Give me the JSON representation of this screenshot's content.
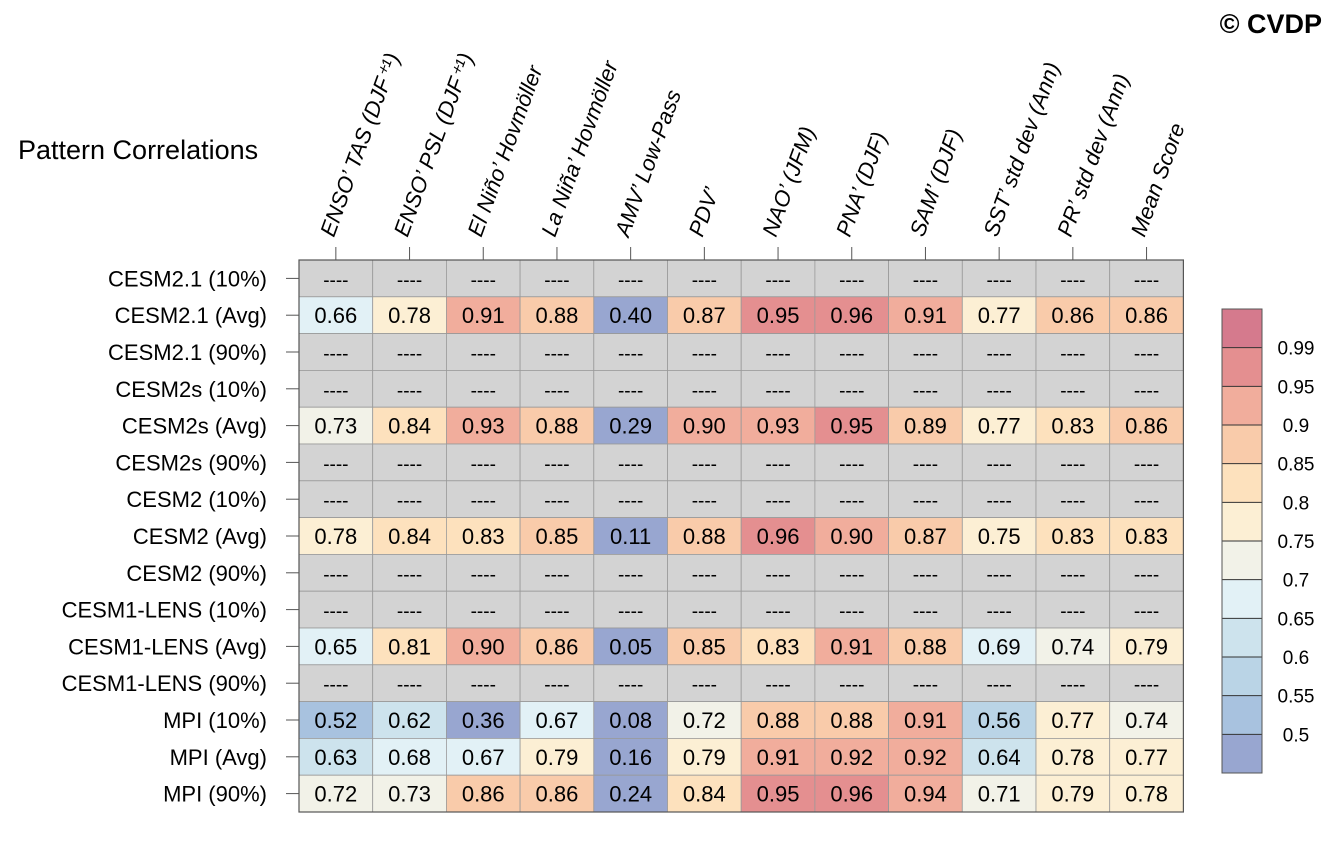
{
  "watermark": "© CVDP",
  "chart_data": {
    "type": "heatmap",
    "title": "Pattern Correlations",
    "columns": [
      "ENSO’ TAS (DJF⁺¹)",
      "ENSO’ PSL (DJF⁺¹)",
      "El Niño’ Hovmöller",
      "La Niña’ Hovmöller",
      "AMV’ Low-Pass",
      "PDV’",
      "NAO’ (JFM)",
      "PNA’ (DJF)",
      "SAM’ (DJF)",
      "SST’ std dev (Ann)",
      "PR’ std dev (Ann)",
      "Mean Score"
    ],
    "rows": [
      {
        "label": "CESM2.1 (10%)",
        "values": [
          null,
          null,
          null,
          null,
          null,
          null,
          null,
          null,
          null,
          null,
          null,
          null
        ]
      },
      {
        "label": "CESM2.1 (Avg)",
        "values": [
          0.66,
          0.78,
          0.91,
          0.88,
          0.4,
          0.87,
          0.95,
          0.96,
          0.91,
          0.77,
          0.86,
          0.86
        ]
      },
      {
        "label": "CESM2.1 (90%)",
        "values": [
          null,
          null,
          null,
          null,
          null,
          null,
          null,
          null,
          null,
          null,
          null,
          null
        ]
      },
      {
        "label": "CESM2s (10%)",
        "values": [
          null,
          null,
          null,
          null,
          null,
          null,
          null,
          null,
          null,
          null,
          null,
          null
        ]
      },
      {
        "label": "CESM2s (Avg)",
        "values": [
          0.73,
          0.84,
          0.93,
          0.88,
          0.29,
          0.9,
          0.93,
          0.95,
          0.89,
          0.77,
          0.83,
          0.86
        ]
      },
      {
        "label": "CESM2s (90%)",
        "values": [
          null,
          null,
          null,
          null,
          null,
          null,
          null,
          null,
          null,
          null,
          null,
          null
        ]
      },
      {
        "label": "CESM2 (10%)",
        "values": [
          null,
          null,
          null,
          null,
          null,
          null,
          null,
          null,
          null,
          null,
          null,
          null
        ]
      },
      {
        "label": "CESM2 (Avg)",
        "values": [
          0.78,
          0.84,
          0.83,
          0.85,
          0.11,
          0.88,
          0.96,
          0.9,
          0.87,
          0.75,
          0.83,
          0.83
        ]
      },
      {
        "label": "CESM2 (90%)",
        "values": [
          null,
          null,
          null,
          null,
          null,
          null,
          null,
          null,
          null,
          null,
          null,
          null
        ]
      },
      {
        "label": "CESM1-LENS (10%)",
        "values": [
          null,
          null,
          null,
          null,
          null,
          null,
          null,
          null,
          null,
          null,
          null,
          null
        ]
      },
      {
        "label": "CESM1-LENS (Avg)",
        "values": [
          0.65,
          0.81,
          0.9,
          0.86,
          0.05,
          0.85,
          0.83,
          0.91,
          0.88,
          0.69,
          0.74,
          0.79
        ]
      },
      {
        "label": "CESM1-LENS (90%)",
        "values": [
          null,
          null,
          null,
          null,
          null,
          null,
          null,
          null,
          null,
          null,
          null,
          null
        ]
      },
      {
        "label": "MPI (10%)",
        "values": [
          0.52,
          0.62,
          0.36,
          0.67,
          0.08,
          0.72,
          0.88,
          0.88,
          0.91,
          0.56,
          0.77,
          0.74
        ]
      },
      {
        "label": "MPI (Avg)",
        "values": [
          0.63,
          0.68,
          0.67,
          0.79,
          0.16,
          0.79,
          0.91,
          0.92,
          0.92,
          0.64,
          0.78,
          0.77
        ]
      },
      {
        "label": "MPI (90%)",
        "values": [
          0.72,
          0.73,
          0.86,
          0.86,
          0.24,
          0.84,
          0.95,
          0.96,
          0.94,
          0.71,
          0.79,
          0.78
        ]
      }
    ],
    "missing_text": "----",
    "missing_color": "#d3d3d3",
    "colorbar": {
      "levels": [
        0.5,
        0.55,
        0.6,
        0.65,
        0.7,
        0.75,
        0.8,
        0.85,
        0.9,
        0.95,
        0.99
      ],
      "labels": [
        "0.5",
        "0.55",
        "0.6",
        "0.65",
        "0.7",
        "0.75",
        "0.8",
        "0.85",
        "0.9",
        "0.95",
        "0.99"
      ],
      "colors": [
        "#98a6d0",
        "#a8c2df",
        "#bad4e6",
        "#cde3ed",
        "#e2f1f6",
        "#f2f2e8",
        "#fcefd4",
        "#fde1bd",
        "#f9cbaa",
        "#f1ad9c",
        "#e48f90",
        "#d57a8d"
      ]
    }
  }
}
